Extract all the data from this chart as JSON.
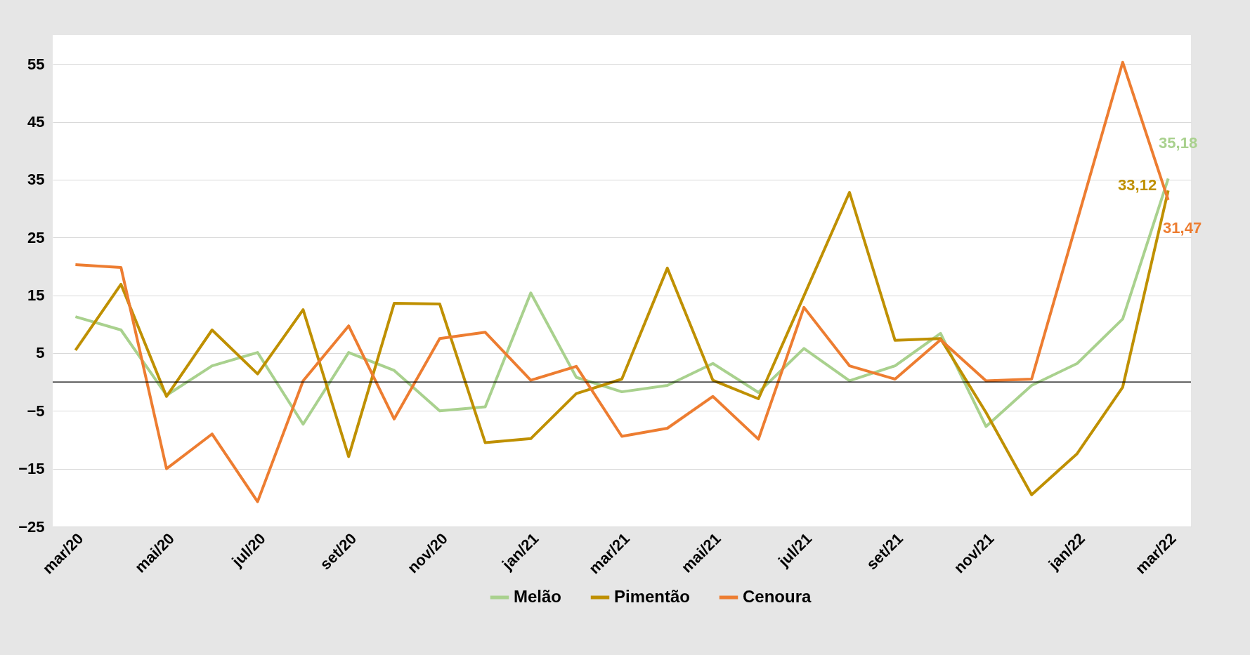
{
  "chart_data": {
    "type": "line",
    "categories": [
      "mar/20",
      null,
      "mai/20",
      null,
      "jul/20",
      null,
      "set/20",
      null,
      "nov/20",
      null,
      "jan/21",
      null,
      "mar/21",
      null,
      "mai/21",
      null,
      "jul/21",
      null,
      "set/21",
      null,
      "nov/21",
      null,
      "jan/22",
      null,
      "mar/22"
    ],
    "ylim": [
      -25,
      60
    ],
    "yticks": [
      -25,
      -15,
      -5,
      5,
      15,
      25,
      35,
      45,
      55
    ],
    "grid": "y",
    "legend": "bottom",
    "marker": "none",
    "line_style": "solid",
    "ref_lines": [
      {
        "axis": "y",
        "value": 0,
        "color": "#000000"
      }
    ],
    "series": [
      {
        "name": "Melão",
        "color": "#a9d18e",
        "values": [
          11.3,
          9,
          -2.3,
          2.8,
          5.1,
          -7.3,
          5.1,
          2,
          -5,
          -4.3,
          15.4,
          0.8,
          -1.7,
          -0.6,
          3.2,
          -1.8,
          5.8,
          0.2,
          2.8,
          8.4,
          -7.7,
          -0.6,
          3.2,
          10.9,
          35.18
        ],
        "value_labels": [
          null,
          null,
          null,
          null,
          null,
          null,
          null,
          null,
          null,
          null,
          null,
          null,
          null,
          null,
          null,
          null,
          null,
          null,
          null,
          null,
          null,
          null,
          null,
          null,
          "35,18"
        ]
      },
      {
        "name": "Pimentão",
        "color": "#bf9000",
        "values": [
          5.5,
          16.9,
          -2.5,
          9,
          1.4,
          12.5,
          -12.9,
          13.6,
          13.5,
          -10.5,
          -9.8,
          -2,
          0.5,
          19.7,
          0.3,
          -2.9,
          14.9,
          32.8,
          7.2,
          7.5,
          -5.3,
          -19.5,
          -12.4,
          -0.9,
          33.12
        ],
        "value_labels": [
          null,
          null,
          null,
          null,
          null,
          null,
          null,
          null,
          null,
          null,
          null,
          null,
          null,
          null,
          null,
          null,
          null,
          null,
          null,
          null,
          null,
          null,
          null,
          null,
          "33,12"
        ]
      },
      {
        "name": "Cenoura",
        "color": "#ed7d31",
        "values": [
          20.3,
          19.8,
          -15,
          -9,
          -20.7,
          0.2,
          9.7,
          -6.4,
          7.5,
          8.6,
          0.3,
          2.7,
          -9.4,
          -8,
          -2.5,
          -9.9,
          12.9,
          2.8,
          0.5,
          7.3,
          0.2,
          0.5,
          27.9,
          55.3,
          31.47
        ],
        "value_labels": [
          null,
          null,
          null,
          null,
          null,
          null,
          null,
          null,
          null,
          null,
          null,
          null,
          null,
          null,
          null,
          null,
          null,
          null,
          null,
          null,
          null,
          null,
          null,
          null,
          "31,47"
        ]
      }
    ]
  }
}
